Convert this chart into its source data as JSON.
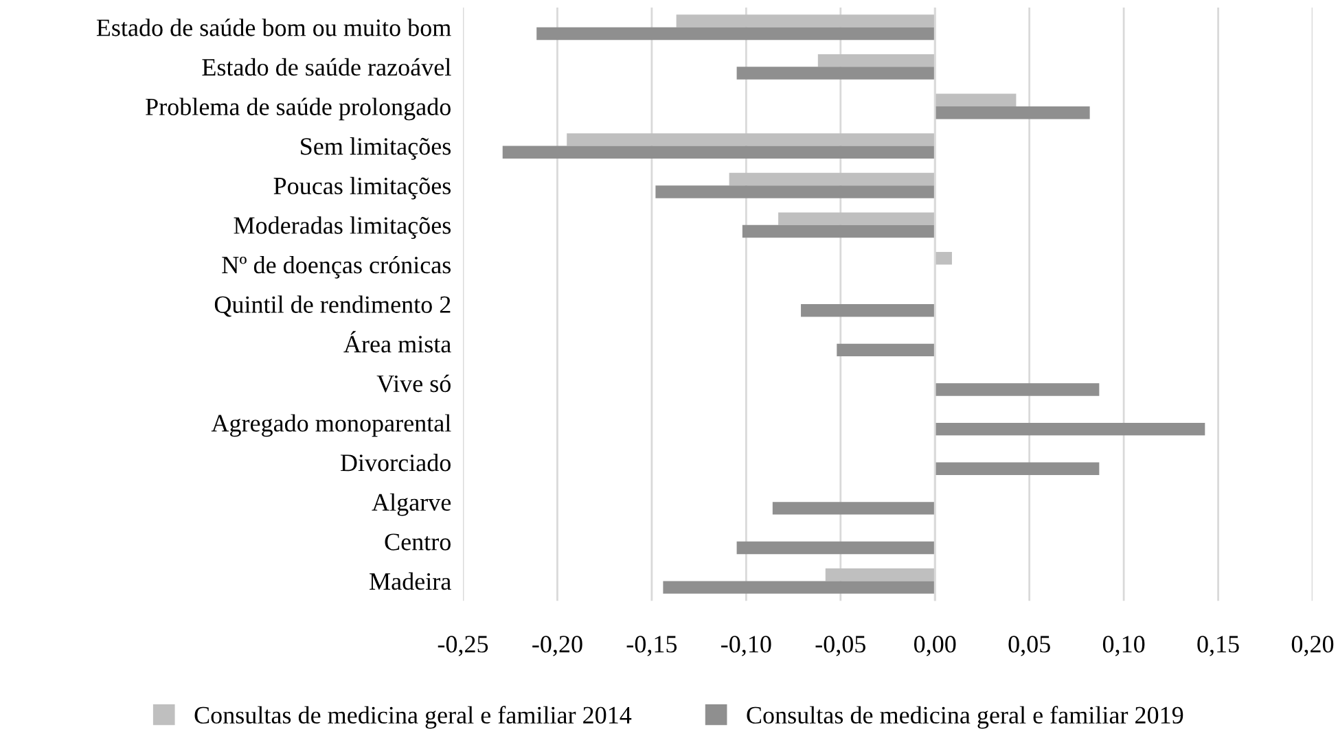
{
  "chart_data": {
    "type": "bar",
    "orientation": "horizontal",
    "categories": [
      "Estado de saúde bom ou muito bom",
      "Estado de saúde razoável",
      "Problema de saúde prolongado",
      "Sem limitações",
      "Poucas limitações",
      "Moderadas limitações",
      "Nº de doenças crónicas",
      "Quintil de rendimento 2",
      "Área mista",
      "Vive só",
      "Agregado monoparental",
      "Divorciado",
      "Algarve",
      "Centro",
      "Madeira"
    ],
    "series": [
      {
        "name": "Consultas de medicina geral e familiar 2014",
        "color": "#bfbfbf",
        "values": [
          -0.137,
          -0.062,
          0.043,
          -0.195,
          -0.109,
          -0.083,
          0.009,
          null,
          null,
          null,
          null,
          null,
          null,
          null,
          -0.058
        ]
      },
      {
        "name": "Consultas de medicina geral e familiar 2019",
        "color": "#8f8f8f",
        "values": [
          -0.211,
          -0.105,
          0.082,
          -0.229,
          -0.148,
          -0.102,
          null,
          -0.071,
          -0.052,
          0.087,
          0.143,
          0.087,
          -0.086,
          -0.105,
          -0.144
        ]
      }
    ],
    "xlim": [
      -0.25,
      0.2
    ],
    "xticks": [
      {
        "value": -0.25,
        "label": "-0,25"
      },
      {
        "value": -0.2,
        "label": "-0,20"
      },
      {
        "value": -0.15,
        "label": "-0,15"
      },
      {
        "value": -0.1,
        "label": "-0,10"
      },
      {
        "value": -0.05,
        "label": "-0,05"
      },
      {
        "value": 0,
        "label": "0,00"
      },
      {
        "value": 0.05,
        "label": "0,05"
      },
      {
        "value": 0.1,
        "label": "0,10"
      },
      {
        "value": 0.15,
        "label": "0,15"
      },
      {
        "value": 0.2,
        "label": "0,20"
      }
    ],
    "grid": "x",
    "legend": "bottom"
  }
}
